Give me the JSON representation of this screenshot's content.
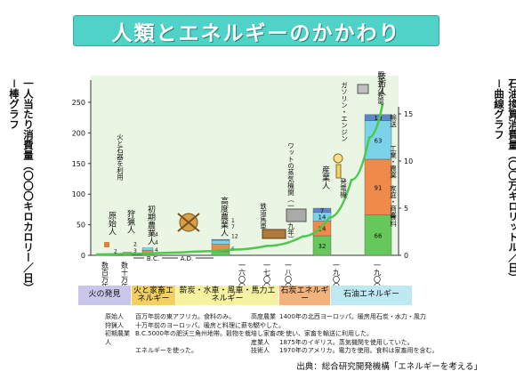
{
  "title": "人類とエネルギーのかかわり",
  "left_axis_label": "一人当たり消費量（〇〇〇キロカロリー／日）－棒グラフ",
  "right_axis_label": "石油換算消費量（〇〇万キロリットル／日）－曲線グラフ",
  "colors": {
    "title_bg": "#4fd3c8",
    "bar_green": "#66c85a",
    "bar_orange": "#f08a4b",
    "bar_cyan": "#7ad3e8",
    "bar_blue": "#5b86c9",
    "curve": "#4cc84c",
    "chart_bg": "#eaf6e4"
  },
  "chart_data": {
    "type": "bar",
    "left_axis": {
      "ylim": [
        0,
        250
      ],
      "ticks": [
        "0",
        "50",
        "100",
        "150",
        "200",
        "250"
      ]
    },
    "right_axis": {
      "ylim": [
        0,
        15
      ],
      "ticks": [
        "0",
        "5",
        "10",
        "15"
      ]
    },
    "categories": [
      "原始人",
      "狩猟人",
      "初期農業人",
      "高度農業人",
      "産業人",
      "技術人"
    ],
    "bars": [
      {
        "name": "原始人",
        "segments": [
          {
            "value": 2,
            "color": "green"
          }
        ],
        "label_values": [
          "2"
        ]
      },
      {
        "name": "狩猟人",
        "segments": [
          {
            "value": 3,
            "color": "green"
          },
          {
            "value": 2,
            "color": "orange"
          }
        ],
        "label_values": [
          "3",
          "2"
        ]
      },
      {
        "name": "初期農業人",
        "segments": [
          {
            "value": 4,
            "color": "green"
          },
          {
            "value": 4,
            "color": "orange"
          },
          {
            "value": 4,
            "color": "cyan"
          }
        ],
        "label_values": [
          "4",
          "4",
          "4"
        ]
      },
      {
        "name": "高度農業人",
        "segments": [
          {
            "value": 6,
            "color": "green"
          },
          {
            "value": 12,
            "color": "orange"
          },
          {
            "value": 7,
            "color": "cyan"
          },
          {
            "value": 1,
            "color": "blue"
          }
        ],
        "label_values": [
          "6",
          "12",
          "7",
          "1"
        ]
      },
      {
        "name": "産業人",
        "segments": [
          {
            "value": 32,
            "color": "green"
          },
          {
            "value": 24,
            "color": "orange"
          },
          {
            "value": 14,
            "color": "cyan"
          },
          {
            "value": 7,
            "color": "blue"
          }
        ],
        "label_values": [
          "32",
          "24",
          "14",
          "7"
        ]
      },
      {
        "name": "技術人",
        "segments": [
          {
            "value": 66,
            "color": "green"
          },
          {
            "value": 91,
            "color": "orange"
          },
          {
            "value": 63,
            "color": "cyan"
          },
          {
            "value": 10,
            "color": "blue"
          }
        ],
        "label_values": [
          "66",
          "91",
          "63",
          "10"
        ]
      }
    ],
    "stack_labels": [
      "食料",
      "家庭・商業",
      "工業・農業",
      "輸送"
    ],
    "curve": {
      "name": "石油換算消費量",
      "points": [
        [
          0,
          0.1
        ],
        [
          1,
          0.15
        ],
        [
          2,
          0.25
        ],
        [
          3,
          0.4
        ],
        [
          4,
          0.6
        ],
        [
          5,
          1.0
        ],
        [
          6,
          2.0
        ],
        [
          7,
          4.0
        ],
        [
          8,
          8.0
        ],
        [
          9,
          12.5
        ],
        [
          10,
          16.0
        ]
      ]
    },
    "x_tick_labels": [
      "数百万年",
      "数十万年",
      "B.C.",
      "A.D.",
      "一六〇〇年",
      "一七〇〇年",
      "一八〇〇年",
      "一九〇〇年",
      "一九〇〇年"
    ],
    "annotations": [
      "鉄道馬車",
      "ワットの蒸気機関（一七六九年）",
      "発電機",
      "ガソリン・エンジン",
      "原子力発電",
      "火と石器を利用"
    ]
  },
  "eras": [
    {
      "label": "火の発見",
      "color": "#c9c6ea"
    },
    {
      "label": "火と家畜エネルギー",
      "color": "#f3d060"
    },
    {
      "label": "薪炭・水車・風車・馬力エネルギー",
      "color": "#f6f2a0"
    },
    {
      "label": "石炭エネルギー",
      "color": "#f2b27a"
    },
    {
      "label": "石油エネルギー",
      "color": "#bfe9f2"
    }
  ],
  "legend_left": [
    {
      "term": "原始人",
      "desc": "百万年前の東アフリカ。食料のみ。"
    },
    {
      "term": "狩猟人",
      "desc": "十万年前のヨーロッパ。暖房と料理に薪を燃やした。"
    },
    {
      "term": "初期農業人",
      "desc": "B.C.5000年の肥沃三角州地帯。穀物を栽培し家畜の"
    },
    {
      "term": "",
      "desc": "エネルギーを使った。"
    }
  ],
  "legend_right": [
    {
      "term": "高度農業人",
      "desc": "1400年の北西ヨーロッパ。暖房用石炭・水力・風力"
    },
    {
      "term": "",
      "desc": "を使い、家畜を輸送に利用した。"
    },
    {
      "term": "産業人",
      "desc": "1875年のイギリス。蒸気機関を使用していた。"
    },
    {
      "term": "技術人",
      "desc": "1970年のアメリカ。電力を使用。食料は家畜用を含む。"
    }
  ],
  "source": "出典：総合研究開発機構「エネルギーを考える」"
}
